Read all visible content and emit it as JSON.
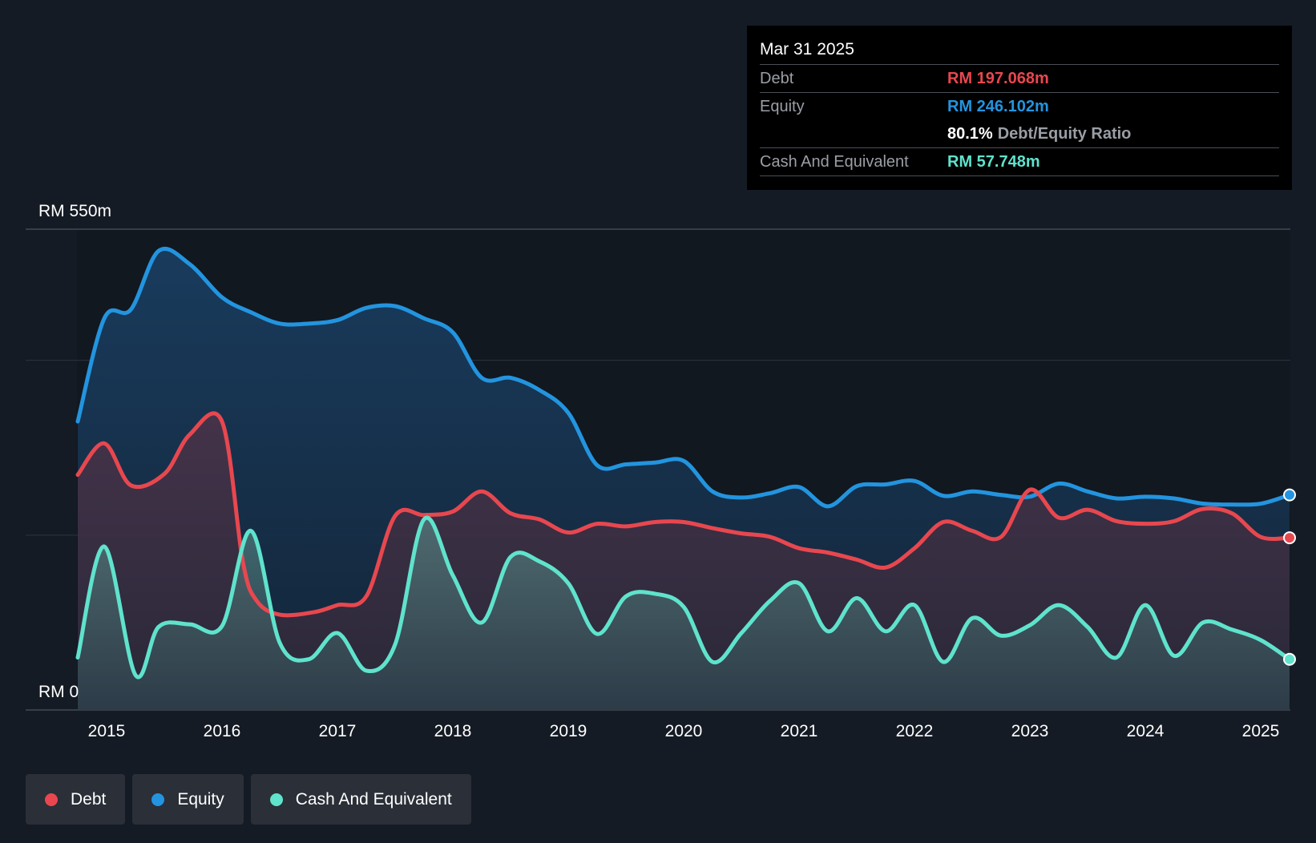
{
  "chart_data": {
    "type": "area",
    "x_ticks": [
      "2015",
      "2016",
      "2017",
      "2018",
      "2019",
      "2020",
      "2021",
      "2022",
      "2023",
      "2024",
      "2025"
    ],
    "y_label_top": "RM 550m",
    "y_label_bottom": "RM 0",
    "ylim": [
      0,
      550
    ],
    "grid": true,
    "series": [
      {
        "name": "Debt",
        "color": "#e8474f",
        "points": [
          [
            2014.75,
            269
          ],
          [
            2014.98,
            305
          ],
          [
            2015.21,
            257
          ],
          [
            2015.5,
            270
          ],
          [
            2015.72,
            315
          ],
          [
            2016.0,
            330
          ],
          [
            2016.18,
            170
          ],
          [
            2016.3,
            125
          ],
          [
            2016.5,
            109
          ],
          [
            2016.8,
            112
          ],
          [
            2017.0,
            120
          ],
          [
            2017.25,
            130
          ],
          [
            2017.5,
            222
          ],
          [
            2017.75,
            223
          ],
          [
            2018.0,
            227
          ],
          [
            2018.25,
            250
          ],
          [
            2018.5,
            225
          ],
          [
            2018.75,
            218
          ],
          [
            2019.0,
            203
          ],
          [
            2019.25,
            213
          ],
          [
            2019.5,
            210
          ],
          [
            2019.75,
            215
          ],
          [
            2020.0,
            215
          ],
          [
            2020.25,
            208
          ],
          [
            2020.5,
            202
          ],
          [
            2020.75,
            198
          ],
          [
            2021.0,
            185
          ],
          [
            2021.25,
            180
          ],
          [
            2021.5,
            172
          ],
          [
            2021.75,
            163
          ],
          [
            2022.0,
            185
          ],
          [
            2022.25,
            215
          ],
          [
            2022.5,
            205
          ],
          [
            2022.75,
            198
          ],
          [
            2023.0,
            252
          ],
          [
            2023.25,
            220
          ],
          [
            2023.5,
            229
          ],
          [
            2023.75,
            216
          ],
          [
            2024.0,
            213
          ],
          [
            2024.25,
            216
          ],
          [
            2024.5,
            230
          ],
          [
            2024.75,
            225
          ],
          [
            2025.0,
            198
          ],
          [
            2025.25,
            197
          ]
        ]
      },
      {
        "name": "Equity",
        "color": "#2394df",
        "points": [
          [
            2014.75,
            330
          ],
          [
            2014.98,
            448
          ],
          [
            2015.21,
            458
          ],
          [
            2015.45,
            525
          ],
          [
            2015.72,
            510
          ],
          [
            2016.0,
            472
          ],
          [
            2016.25,
            455
          ],
          [
            2016.5,
            442
          ],
          [
            2016.75,
            442
          ],
          [
            2017.0,
            446
          ],
          [
            2017.25,
            460
          ],
          [
            2017.5,
            462
          ],
          [
            2017.75,
            448
          ],
          [
            2018.0,
            432
          ],
          [
            2018.25,
            380
          ],
          [
            2018.5,
            380
          ],
          [
            2018.75,
            366
          ],
          [
            2019.0,
            340
          ],
          [
            2019.25,
            280
          ],
          [
            2019.5,
            281
          ],
          [
            2019.75,
            283
          ],
          [
            2020.0,
            285
          ],
          [
            2020.25,
            250
          ],
          [
            2020.5,
            243
          ],
          [
            2020.75,
            248
          ],
          [
            2021.0,
            255
          ],
          [
            2021.25,
            233
          ],
          [
            2021.5,
            256
          ],
          [
            2021.75,
            258
          ],
          [
            2022.0,
            262
          ],
          [
            2022.25,
            245
          ],
          [
            2022.5,
            250
          ],
          [
            2022.75,
            246
          ],
          [
            2023.0,
            244
          ],
          [
            2023.25,
            259
          ],
          [
            2023.5,
            250
          ],
          [
            2023.75,
            242
          ],
          [
            2024.0,
            244
          ],
          [
            2024.25,
            242
          ],
          [
            2024.5,
            236
          ],
          [
            2024.75,
            235
          ],
          [
            2025.0,
            236
          ],
          [
            2025.25,
            246
          ]
        ]
      },
      {
        "name": "Cash And Equivalent",
        "color": "#5fe3cc",
        "points": [
          [
            2014.75,
            60
          ],
          [
            2014.98,
            187
          ],
          [
            2015.25,
            40
          ],
          [
            2015.45,
            95
          ],
          [
            2015.72,
            98
          ],
          [
            2016.0,
            96
          ],
          [
            2016.25,
            205
          ],
          [
            2016.5,
            77
          ],
          [
            2016.75,
            58
          ],
          [
            2017.0,
            88
          ],
          [
            2017.25,
            45
          ],
          [
            2017.5,
            75
          ],
          [
            2017.75,
            218
          ],
          [
            2018.0,
            154
          ],
          [
            2018.25,
            100
          ],
          [
            2018.5,
            175
          ],
          [
            2018.75,
            170
          ],
          [
            2019.0,
            145
          ],
          [
            2019.25,
            87
          ],
          [
            2019.5,
            130
          ],
          [
            2019.75,
            133
          ],
          [
            2020.0,
            118
          ],
          [
            2020.25,
            55
          ],
          [
            2020.5,
            88
          ],
          [
            2020.75,
            125
          ],
          [
            2021.0,
            145
          ],
          [
            2021.25,
            90
          ],
          [
            2021.5,
            128
          ],
          [
            2021.75,
            90
          ],
          [
            2022.0,
            120
          ],
          [
            2022.25,
            55
          ],
          [
            2022.5,
            105
          ],
          [
            2022.75,
            85
          ],
          [
            2023.0,
            97
          ],
          [
            2023.25,
            120
          ],
          [
            2023.5,
            95
          ],
          [
            2023.75,
            60
          ],
          [
            2024.0,
            120
          ],
          [
            2024.25,
            62
          ],
          [
            2024.5,
            100
          ],
          [
            2024.75,
            92
          ],
          [
            2025.0,
            80
          ],
          [
            2025.25,
            58
          ]
        ]
      }
    ]
  },
  "tooltip": {
    "date": "Mar 31 2025",
    "debt_label": "Debt",
    "debt_value": "RM 197.068m",
    "equity_label": "Equity",
    "equity_value": "RM 246.102m",
    "ratio_value": "80.1%",
    "ratio_label": "Debt/Equity Ratio",
    "cash_label": "Cash And Equivalent",
    "cash_value": "RM 57.748m"
  },
  "legend": [
    {
      "label": "Debt",
      "color": "#e8474f"
    },
    {
      "label": "Equity",
      "color": "#2394df"
    },
    {
      "label": "Cash And Equivalent",
      "color": "#5fe3cc"
    }
  ]
}
